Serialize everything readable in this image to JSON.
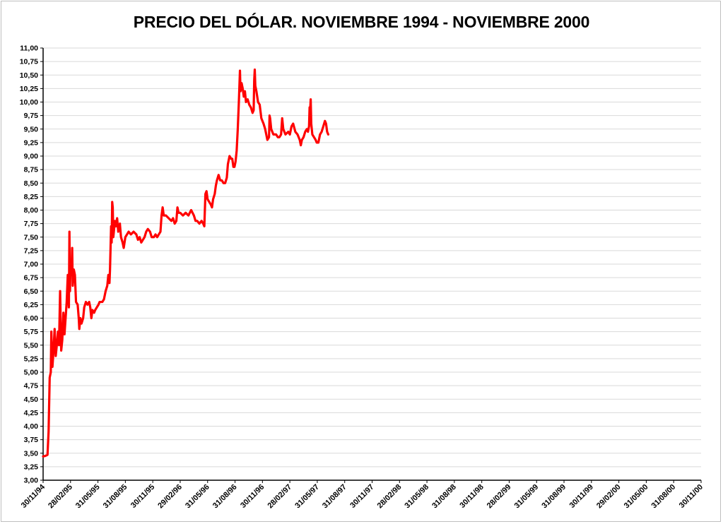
{
  "chart_data": {
    "type": "line",
    "title": "PRECIO DEL DÓLAR. NOVIEMBRE 1994 - NOVIEMBRE 2000",
    "xlabel": "",
    "ylabel": "",
    "ylim": [
      3.0,
      11.0
    ],
    "grid": true,
    "legend": "none",
    "line_color": "#ff0000",
    "y_ticks": [
      "3,00",
      "3,25",
      "3,50",
      "3,75",
      "4,00",
      "4,25",
      "4,50",
      "4,75",
      "5,00",
      "5,25",
      "5,50",
      "5,75",
      "6,00",
      "6,25",
      "6,50",
      "6,75",
      "7,00",
      "7,25",
      "7,50",
      "7,75",
      "8,00",
      "8,25",
      "8,50",
      "8,75",
      "9,00",
      "9,25",
      "9,50",
      "9,75",
      "10,00",
      "10,25",
      "10,50",
      "10,75",
      "11,00"
    ],
    "x_ticks": [
      "30/11/94",
      "28/02/95",
      "31/05/95",
      "31/08/95",
      "30/11/95",
      "29/02/96",
      "31/05/96",
      "31/08/96",
      "30/11/96",
      "28/02/97",
      "31/05/97",
      "31/08/97",
      "30/11/97",
      "28/02/98",
      "31/05/98",
      "31/08/98",
      "30/11/98",
      "28/02/99",
      "31/05/99",
      "31/08/99",
      "30/11/99",
      "29/02/00",
      "31/05/00",
      "31/08/00",
      "30/11/00"
    ],
    "series": [
      {
        "values": [
          [
            0.0,
            3.44
          ],
          [
            0.08,
            3.45
          ],
          [
            0.16,
            3.47
          ],
          [
            0.2,
            3.9
          ],
          [
            0.24,
            4.9
          ],
          [
            0.28,
            5.0
          ],
          [
            0.3,
            5.75
          ],
          [
            0.34,
            5.1
          ],
          [
            0.38,
            5.4
          ],
          [
            0.42,
            5.8
          ],
          [
            0.46,
            5.3
          ],
          [
            0.5,
            5.5
          ],
          [
            0.54,
            5.75
          ],
          [
            0.58,
            5.5
          ],
          [
            0.62,
            6.5
          ],
          [
            0.66,
            5.4
          ],
          [
            0.7,
            5.6
          ],
          [
            0.74,
            6.1
          ],
          [
            0.78,
            5.7
          ],
          [
            0.82,
            6.0
          ],
          [
            0.86,
            6.3
          ],
          [
            0.9,
            6.8
          ],
          [
            0.94,
            6.2
          ],
          [
            0.96,
            7.6
          ],
          [
            0.98,
            6.5
          ],
          [
            1.0,
            7.0
          ],
          [
            1.04,
            6.8
          ],
          [
            1.06,
            7.3
          ],
          [
            1.08,
            6.6
          ],
          [
            1.12,
            6.9
          ],
          [
            1.16,
            6.8
          ],
          [
            1.2,
            6.3
          ],
          [
            1.26,
            6.25
          ],
          [
            1.3,
            6.0
          ],
          [
            1.32,
            5.8
          ],
          [
            1.36,
            6.0
          ],
          [
            1.4,
            5.9
          ],
          [
            1.46,
            6.0
          ],
          [
            1.5,
            6.2
          ],
          [
            1.56,
            6.3
          ],
          [
            1.62,
            6.25
          ],
          [
            1.68,
            6.3
          ],
          [
            1.72,
            6.2
          ],
          [
            1.76,
            6.0
          ],
          [
            1.8,
            6.15
          ],
          [
            1.86,
            6.1
          ],
          [
            1.9,
            6.15
          ],
          [
            1.96,
            6.2
          ],
          [
            2.02,
            6.25
          ],
          [
            2.06,
            6.3
          ],
          [
            2.1,
            6.3
          ],
          [
            2.16,
            6.3
          ],
          [
            2.22,
            6.35
          ],
          [
            2.28,
            6.5
          ],
          [
            2.34,
            6.6
          ],
          [
            2.38,
            6.8
          ],
          [
            2.42,
            6.65
          ],
          [
            2.44,
            6.9
          ],
          [
            2.46,
            7.3
          ],
          [
            2.48,
            7.7
          ],
          [
            2.5,
            7.4
          ],
          [
            2.52,
            8.15
          ],
          [
            2.54,
            8.05
          ],
          [
            2.56,
            7.5
          ],
          [
            2.58,
            7.6
          ],
          [
            2.62,
            7.8
          ],
          [
            2.66,
            7.7
          ],
          [
            2.7,
            7.85
          ],
          [
            2.74,
            7.6
          ],
          [
            2.8,
            7.75
          ],
          [
            2.84,
            7.5
          ],
          [
            2.9,
            7.4
          ],
          [
            2.94,
            7.3
          ],
          [
            3.0,
            7.5
          ],
          [
            3.06,
            7.55
          ],
          [
            3.12,
            7.6
          ],
          [
            3.2,
            7.55
          ],
          [
            3.3,
            7.6
          ],
          [
            3.4,
            7.55
          ],
          [
            3.46,
            7.45
          ],
          [
            3.52,
            7.5
          ],
          [
            3.58,
            7.4
          ],
          [
            3.64,
            7.45
          ],
          [
            3.7,
            7.5
          ],
          [
            3.76,
            7.6
          ],
          [
            3.82,
            7.65
          ],
          [
            3.9,
            7.6
          ],
          [
            3.96,
            7.5
          ],
          [
            4.04,
            7.5
          ],
          [
            4.1,
            7.55
          ],
          [
            4.16,
            7.5
          ],
          [
            4.22,
            7.55
          ],
          [
            4.28,
            7.6
          ],
          [
            4.32,
            7.9
          ],
          [
            4.36,
            8.05
          ],
          [
            4.4,
            7.9
          ],
          [
            4.48,
            7.9
          ],
          [
            4.58,
            7.85
          ],
          [
            4.68,
            7.8
          ],
          [
            4.74,
            7.85
          ],
          [
            4.8,
            7.75
          ],
          [
            4.86,
            7.8
          ],
          [
            4.9,
            8.05
          ],
          [
            4.94,
            7.95
          ],
          [
            5.0,
            7.95
          ],
          [
            5.1,
            7.9
          ],
          [
            5.2,
            7.95
          ],
          [
            5.3,
            7.9
          ],
          [
            5.4,
            8.0
          ],
          [
            5.5,
            7.9
          ],
          [
            5.56,
            7.8
          ],
          [
            5.62,
            7.8
          ],
          [
            5.7,
            7.75
          ],
          [
            5.78,
            7.8
          ],
          [
            5.84,
            7.75
          ],
          [
            5.88,
            7.7
          ],
          [
            5.9,
            8.0
          ],
          [
            5.92,
            8.3
          ],
          [
            5.96,
            8.35
          ],
          [
            6.0,
            8.2
          ],
          [
            6.06,
            8.15
          ],
          [
            6.12,
            8.1
          ],
          [
            6.16,
            8.05
          ],
          [
            6.2,
            8.2
          ],
          [
            6.26,
            8.3
          ],
          [
            6.3,
            8.45
          ],
          [
            6.34,
            8.55
          ],
          [
            6.4,
            8.65
          ],
          [
            6.46,
            8.55
          ],
          [
            6.52,
            8.55
          ],
          [
            6.58,
            8.5
          ],
          [
            6.64,
            8.5
          ],
          [
            6.7,
            8.6
          ],
          [
            6.74,
            8.85
          ],
          [
            6.8,
            9.0
          ],
          [
            6.86,
            8.95
          ],
          [
            6.9,
            8.95
          ],
          [
            6.94,
            8.8
          ],
          [
            6.98,
            8.8
          ],
          [
            7.02,
            8.9
          ],
          [
            7.06,
            9.1
          ],
          [
            7.1,
            9.5
          ],
          [
            7.14,
            10.0
          ],
          [
            7.18,
            10.58
          ],
          [
            7.2,
            10.2
          ],
          [
            7.24,
            10.35
          ],
          [
            7.28,
            10.25
          ],
          [
            7.32,
            10.1
          ],
          [
            7.36,
            10.2
          ],
          [
            7.4,
            10.0
          ],
          [
            7.46,
            10.05
          ],
          [
            7.52,
            9.95
          ],
          [
            7.58,
            9.9
          ],
          [
            7.64,
            9.8
          ],
          [
            7.68,
            9.85
          ],
          [
            7.7,
            10.4
          ],
          [
            7.72,
            10.6
          ],
          [
            7.74,
            10.3
          ],
          [
            7.78,
            10.2
          ],
          [
            7.84,
            10.0
          ],
          [
            7.9,
            9.95
          ],
          [
            7.96,
            9.7
          ],
          [
            8.04,
            9.6
          ],
          [
            8.1,
            9.5
          ],
          [
            8.14,
            9.4
          ],
          [
            8.18,
            9.3
          ],
          [
            8.24,
            9.35
          ],
          [
            8.26,
            9.75
          ],
          [
            8.28,
            9.7
          ],
          [
            8.32,
            9.5
          ],
          [
            8.4,
            9.4
          ],
          [
            8.5,
            9.4
          ],
          [
            8.56,
            9.35
          ],
          [
            8.62,
            9.35
          ],
          [
            8.68,
            9.4
          ],
          [
            8.72,
            9.7
          ],
          [
            8.76,
            9.5
          ],
          [
            8.84,
            9.4
          ],
          [
            8.94,
            9.45
          ],
          [
            9.0,
            9.4
          ],
          [
            9.06,
            9.55
          ],
          [
            9.12,
            9.6
          ],
          [
            9.2,
            9.45
          ],
          [
            9.28,
            9.4
          ],
          [
            9.36,
            9.3
          ],
          [
            9.4,
            9.2
          ],
          [
            9.44,
            9.3
          ],
          [
            9.5,
            9.35
          ],
          [
            9.56,
            9.45
          ],
          [
            9.62,
            9.5
          ],
          [
            9.66,
            9.45
          ],
          [
            9.7,
            9.55
          ],
          [
            9.72,
            9.9
          ],
          [
            9.74,
            9.85
          ],
          [
            9.76,
            10.05
          ],
          [
            9.78,
            9.6
          ],
          [
            9.82,
            9.4
          ],
          [
            9.88,
            9.35
          ],
          [
            9.94,
            9.3
          ],
          [
            9.98,
            9.25
          ],
          [
            10.04,
            9.25
          ],
          [
            10.1,
            9.4
          ],
          [
            10.16,
            9.45
          ],
          [
            10.22,
            9.55
          ],
          [
            10.28,
            9.65
          ],
          [
            10.32,
            9.6
          ],
          [
            10.36,
            9.45
          ],
          [
            10.4,
            9.4
          ]
        ]
      }
    ]
  }
}
